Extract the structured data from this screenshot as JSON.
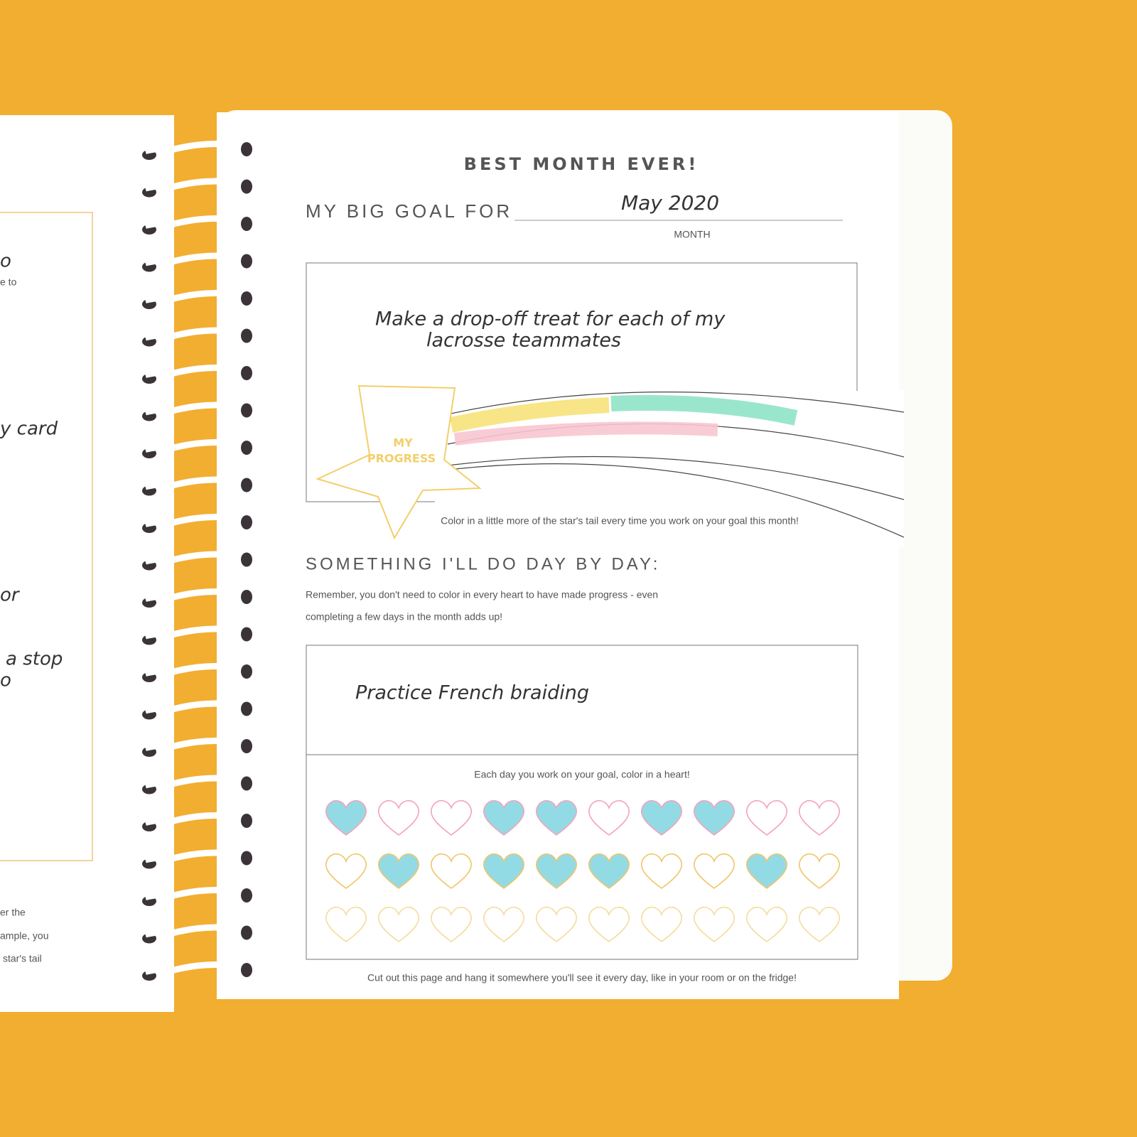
{
  "left_page": {
    "fragments": [
      "o",
      "e to",
      "y card",
      "or",
      "a stop",
      "o",
      "er the",
      "ample, you",
      "star's tail"
    ]
  },
  "header": {
    "title": "BEST MONTH EVER!",
    "goal_label": "MY BIG GOAL FOR",
    "month": "May 2020",
    "month_label": "MONTH"
  },
  "big_goal": {
    "text_lines": [
      "Make a drop-off treat for each of my",
      "lacrosse teammates"
    ],
    "star_label_lines": [
      "MY",
      "PROGRESS"
    ],
    "caption": "Color in a little more of the star's tail every time you work on your goal this month!"
  },
  "daily": {
    "heading": "SOMETHING I'LL DO DAY BY DAY:",
    "note_lines": [
      "Remember, you don't need to color in every heart to have made progress - even",
      "completing a few days in the month adds up!"
    ],
    "goal": "Practice French braiding",
    "instruction": "Each day you work on your goal, color in a heart!",
    "hearts": [
      [
        true,
        false,
        false,
        true,
        true,
        false,
        true,
        true,
        false,
        false
      ],
      [
        false,
        true,
        false,
        true,
        true,
        true,
        false,
        false,
        true,
        false
      ],
      [
        false,
        false,
        false,
        false,
        false,
        false,
        false,
        false,
        false,
        false
      ]
    ]
  },
  "footer": "Cut out this page and hang it somewhere you'll see it every day, like in your room or on the fridge!"
}
